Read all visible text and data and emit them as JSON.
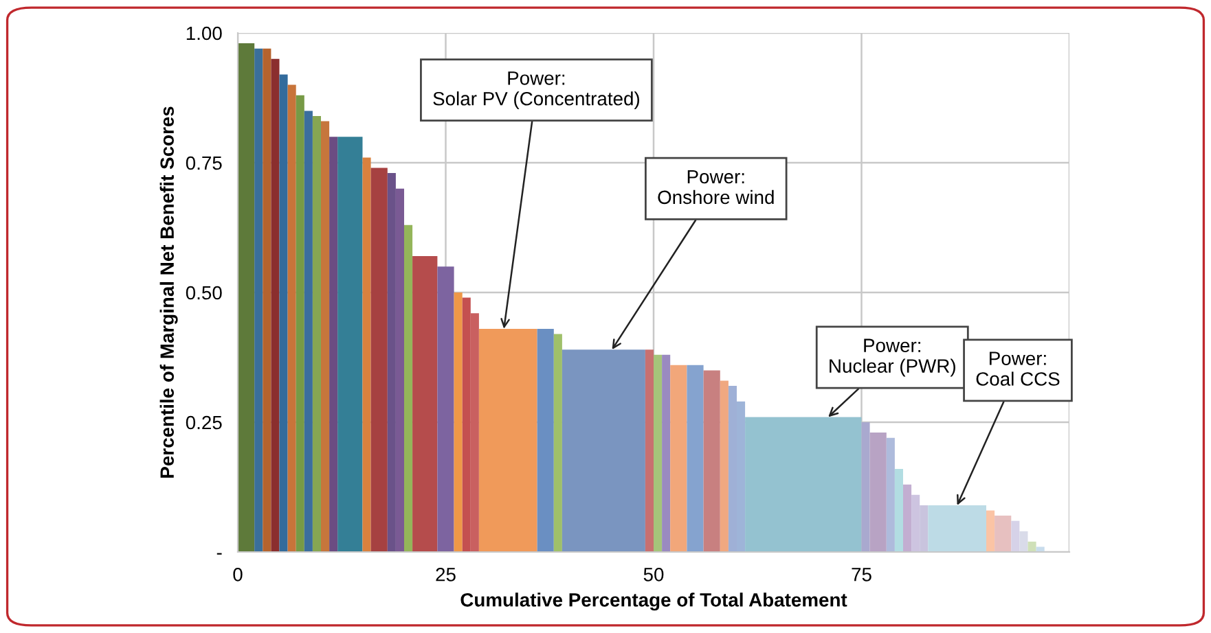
{
  "chart_data": {
    "type": "histogram",
    "xlabel": "Cumulative Percentage of Total Abatement",
    "ylabel": "Percentile of Marginal Net Benefit Scores",
    "bins": [
      0,
      2,
      3,
      4,
      5,
      6,
      7,
      8,
      9,
      10,
      11,
      12,
      15,
      16,
      18,
      19,
      20,
      21,
      24,
      26,
      27,
      28,
      29,
      36,
      38,
      39,
      49,
      50,
      51,
      52,
      54,
      56,
      58,
      59,
      60,
      61,
      75,
      76,
      78,
      79,
      80,
      81,
      82,
      83,
      90,
      91,
      93,
      94,
      95,
      96,
      97
    ],
    "values": [
      0.98,
      0.97,
      0.97,
      0.95,
      0.92,
      0.9,
      0.88,
      0.85,
      0.84,
      0.83,
      0.8,
      0.8,
      0.76,
      0.74,
      0.73,
      0.7,
      0.63,
      0.57,
      0.55,
      0.5,
      0.49,
      0.46,
      0.43,
      0.43,
      0.42,
      0.39,
      0.39,
      0.38,
      0.38,
      0.36,
      0.36,
      0.35,
      0.33,
      0.32,
      0.29,
      0.26,
      0.25,
      0.23,
      0.22,
      0.16,
      0.13,
      0.11,
      0.09,
      0.09,
      0.08,
      0.07,
      0.06,
      0.04,
      0.02,
      0.01
    ],
    "colors": [
      "#5e7a3a",
      "#3a6f9a",
      "#b5632e",
      "#8b2e2e",
      "#336b9c",
      "#c8743a",
      "#779a46",
      "#3b6e9e",
      "#86a652",
      "#c6763c",
      "#6b4c82",
      "#347f96",
      "#d9813e",
      "#a64141",
      "#6a5289",
      "#7a5a94",
      "#94b55a",
      "#b54c4c",
      "#7d64a0",
      "#ef9848",
      "#c45050",
      "#c96060",
      "#f09a5a",
      "#6a8fc2",
      "#9fc06a",
      "#7a95c0",
      "#c87070",
      "#a5c47a",
      "#9a8ac0",
      "#f2a77a",
      "#85a3cf",
      "#c88080",
      "#f0a880",
      "#9fb0d6",
      "#9eb4d8",
      "#94c2d0",
      "#a9a9cf",
      "#b8a3c4",
      "#aebbdc",
      "#b2dde2",
      "#c3aed1",
      "#cdc4e0",
      "#c9c4de",
      "#bddbe6",
      "#fbc4a5",
      "#e7c0c0",
      "#d6d2e8",
      "#d9dbe9",
      "#cfe0b8",
      "#c8dcec"
    ],
    "xlim": [
      0,
      100
    ],
    "ylim": [
      0,
      1
    ],
    "xticks": [
      0,
      25,
      50,
      75,
      {
        "value": 100,
        "label": null
      }
    ],
    "yticks": [
      {
        "value": 0,
        "label": "-"
      },
      {
        "value": 0.25,
        "label": "0.25"
      },
      {
        "value": 0.5,
        "label": "0.50"
      },
      {
        "value": 0.75,
        "label": "0.75"
      },
      {
        "value": 1,
        "label": "1.00"
      }
    ],
    "grid": true,
    "annotations": [
      {
        "text": "Power:\nSolar PV (Concentrated)",
        "x": 32,
        "y": 0.43
      },
      {
        "text": "Power:\nOnshore wind",
        "x": 45,
        "y": 0.39
      },
      {
        "text": "Power:\nNuclear (PWR)",
        "x": 71,
        "y": 0.26
      },
      {
        "text": "Power:\nCoal CCS",
        "x": 86.5,
        "y": 0.09
      }
    ]
  }
}
